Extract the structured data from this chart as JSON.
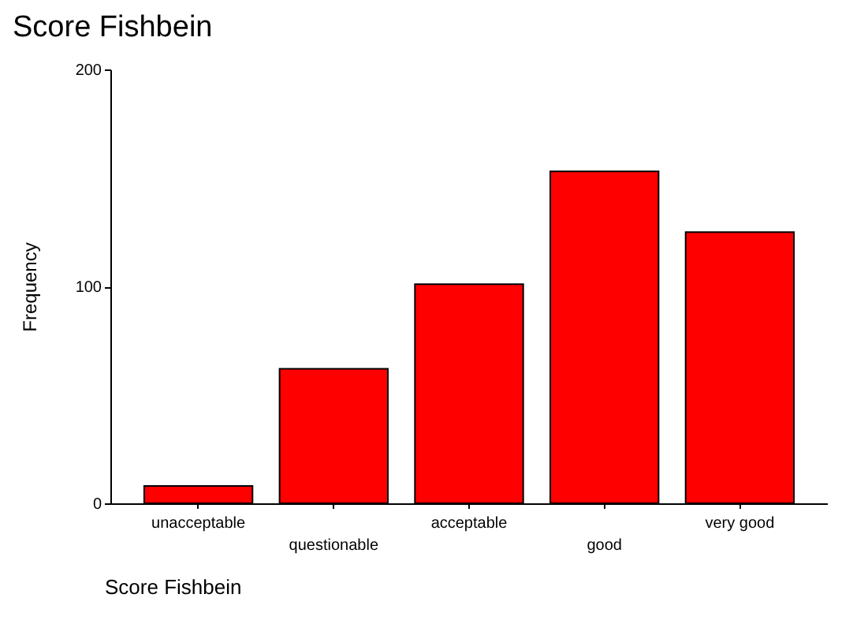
{
  "chart_data": {
    "type": "bar",
    "title": "Score Fishbein",
    "xlabel": "Score Fishbein",
    "ylabel": "Frequency",
    "categories": [
      "unacceptable",
      "questionable",
      "acceptable",
      "good",
      "very good"
    ],
    "values": [
      8,
      62,
      101,
      153,
      125
    ],
    "color": "#ff0000",
    "ylim": [
      0,
      200
    ],
    "yticks": [
      0,
      100,
      200
    ],
    "grid": false
  }
}
